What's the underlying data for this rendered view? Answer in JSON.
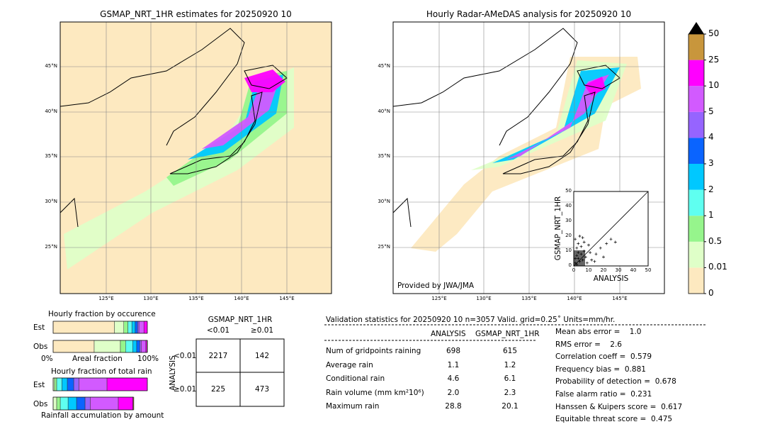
{
  "colors": {
    "levels": [
      "#fde9c0",
      "#dfffc8",
      "#96f58c",
      "#5ffff0",
      "#00c8ff",
      "#0a64ff",
      "#9664ff",
      "#d25aff",
      "#ff00ff",
      "#c8963c"
    ],
    "over": "#000000"
  },
  "chart_data": [
    {
      "type": "heatmap",
      "title": "GSMAP_NRT_1HR estimates for 20250920 10",
      "lat_ticks": [
        "45°N",
        "40°N",
        "35°N",
        "30°N",
        "25°N"
      ],
      "lon_ticks": [
        "125°E",
        "130°E",
        "135°E",
        "140°E",
        "145°E"
      ]
    },
    {
      "type": "heatmap",
      "title": "Hourly Radar-AMeDAS analysis for 20250920 10",
      "lat_ticks": [
        "45°N",
        "40°N",
        "35°N",
        "30°N",
        "25°N"
      ],
      "lon_ticks": [
        "125°E",
        "130°E",
        "135°E",
        "140°E",
        "145°E"
      ],
      "annotation": "Provided by JWA/JMA"
    },
    {
      "type": "scatter",
      "xlabel": "ANALYSIS",
      "ylabel": "GSMAP_NRT_1HR",
      "xlim": [
        0,
        50
      ],
      "ylim": [
        0,
        50
      ],
      "ticks": [
        "0",
        "10",
        "20",
        "30",
        "40",
        "50"
      ]
    },
    {
      "type": "bar",
      "title": "Hourly fraction by occurence",
      "xlabel": "Areal fraction",
      "x_left": "0%",
      "x_right": "100%",
      "categories": [
        "Est",
        "Obs"
      ],
      "series_percent": {
        "Est": [
          65,
          10,
          4.3,
          4.3,
          3.5,
          2.5,
          1.5,
          5.3,
          3.5,
          0
        ],
        "Obs": [
          43.6,
          27.8,
          5.5,
          7.5,
          4.3,
          3.3,
          1.5,
          4.8,
          1.2,
          0.5
        ]
      }
    },
    {
      "type": "bar",
      "title": "Hourly fraction of total rain",
      "xlabel": "Rainfall accumulation by amount",
      "categories": [
        "Est",
        "Obs"
      ],
      "series_percent": {
        "Est": [
          1.5,
          2.3,
          5.5,
          5.8,
          6.8,
          5.5,
          29.8,
          42.8,
          0
        ],
        "Obs": [
          3.8,
          3.8,
          8.3,
          9,
          9,
          5.5,
          29.8,
          15.5,
          1
        ]
      }
    },
    {
      "type": "table",
      "title": "GSMAP_NRT_1HR",
      "col_headers": [
        "<0.01",
        "≥0.01"
      ],
      "row_label": "ANALYSIS",
      "row_headers": [
        "<0.01",
        "≥0.01"
      ],
      "cells": [
        [
          "2217",
          "142"
        ],
        [
          "225",
          "473"
        ]
      ]
    }
  ],
  "colorbar": {
    "labels": [
      "0",
      "0.01",
      "0.5",
      "1",
      "2",
      "3",
      "4",
      "5",
      "10",
      "25",
      "50"
    ]
  },
  "stats": {
    "header": "Validation statistics for 20250920 10  n=3057 Valid. grid=0.25˚ Units=mm/hr.",
    "col_headers": [
      "ANALYSIS",
      "GSMAP_NRT_1HR"
    ],
    "rows": [
      {
        "label": "Num of gridpoints raining",
        "a": "698",
        "g": "615"
      },
      {
        "label": "Average rain",
        "a": "1.1",
        "g": "1.2"
      },
      {
        "label": "Conditional rain",
        "a": "4.6",
        "g": "6.1"
      },
      {
        "label": "Rain volume (mm km²10⁶)",
        "a": "2.0",
        "g": "2.3"
      },
      {
        "label": "Maximum rain",
        "a": "28.8",
        "g": "20.1"
      }
    ],
    "scores": [
      "Mean abs error =    1.0",
      "RMS error =    2.6",
      "Correlation coeff =  0.579",
      "Frequency bias =  0.881",
      "Probability of detection =  0.678",
      "False alarm ratio =  0.231",
      "Hanssen & Kuipers score =  0.617",
      "Equitable threat score =  0.475"
    ]
  }
}
